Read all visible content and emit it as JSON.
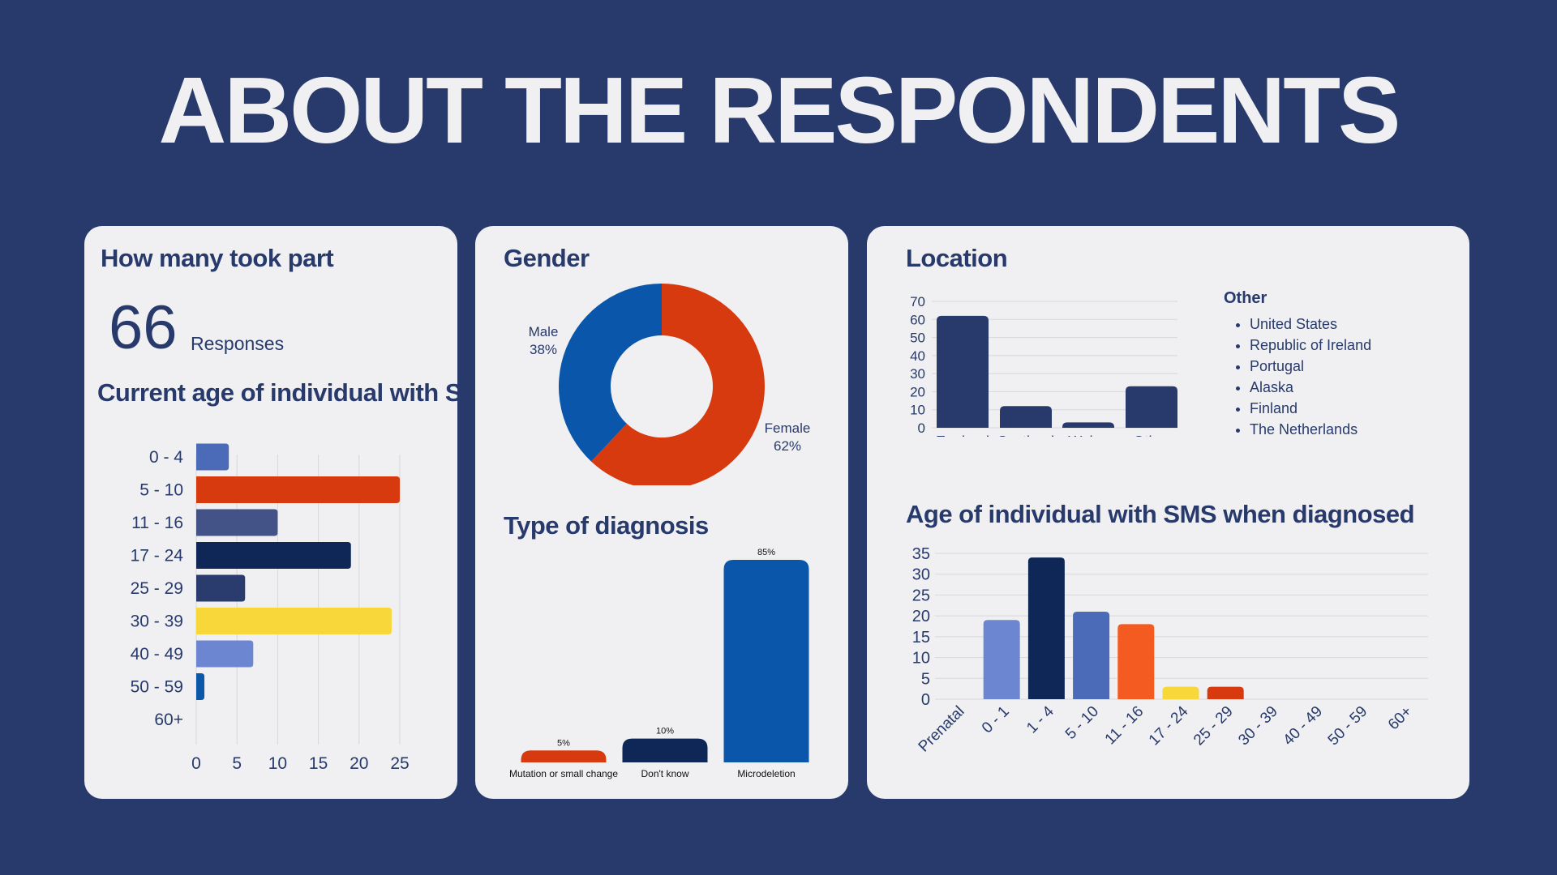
{
  "page": {
    "title": "ABOUT THE RESPONDENTS"
  },
  "participants": {
    "heading": "How many took part",
    "count": "66",
    "count_label": "Responses",
    "age_heading": "Current age of individual with SMS"
  },
  "gender": {
    "heading": "Gender"
  },
  "diagnosis": {
    "heading": "Type of diagnosis"
  },
  "location": {
    "heading": "Location",
    "other_title": "Other",
    "other_items": [
      "United States",
      "Republic of Ireland",
      "Portugal",
      "Alaska",
      "Finland",
      "The Netherlands"
    ]
  },
  "age_diagnosed": {
    "heading": "Age of individual with SMS when diagnosed"
  },
  "chart_data": [
    {
      "id": "current_age",
      "type": "bar",
      "orientation": "horizontal",
      "categories": [
        "0 - 4",
        "5 - 10",
        "11 - 16",
        "17 - 24",
        "25 - 29",
        "30 - 39",
        "40 - 49",
        "50 - 59",
        "60+"
      ],
      "values": [
        4,
        25,
        10,
        19,
        6,
        24,
        7,
        1,
        0
      ],
      "colors": [
        "#4b6bb8",
        "#d73a0e",
        "#435287",
        "#0e2756",
        "#2a3b6e",
        "#f8d73a",
        "#6c86d1",
        "#0b57a8",
        "#6c86d1"
      ],
      "xlim": [
        0,
        25
      ],
      "xticks": [
        0,
        5,
        10,
        15,
        20,
        25
      ],
      "grid": true
    },
    {
      "id": "gender",
      "type": "pie",
      "donut": true,
      "labels": [
        "Female",
        "Male"
      ],
      "values": [
        62,
        38
      ],
      "value_labels": [
        "62%",
        "38%"
      ],
      "colors": [
        "#d73a0e",
        "#0a56aa"
      ]
    },
    {
      "id": "diagnosis",
      "type": "bar",
      "categories": [
        "Mutation or small change",
        "Don't know",
        "Microdeletion"
      ],
      "values": [
        5,
        10,
        85
      ],
      "data_labels": [
        "5%",
        "10%",
        "85%"
      ],
      "colors": [
        "#d73a0e",
        "#0e2756",
        "#0a56aa"
      ],
      "ylim": [
        0,
        85
      ]
    },
    {
      "id": "location",
      "type": "bar",
      "categories": [
        "England",
        "Scotland",
        "Wales",
        "Other"
      ],
      "values": [
        62,
        12,
        3,
        23
      ],
      "colors": [
        "#273a6b",
        "#273a6b",
        "#273a6b",
        "#273a6b"
      ],
      "ylim": [
        0,
        70
      ],
      "yticks": [
        0,
        10,
        20,
        30,
        40,
        50,
        60,
        70
      ],
      "grid": true
    },
    {
      "id": "age_diagnosed",
      "type": "bar",
      "categories": [
        "Prenatal",
        "0 - 1",
        "1 - 4",
        "5 - 10",
        "11 - 16",
        "17 - 24",
        "25 - 29",
        "30 - 39",
        "40 - 49",
        "50 - 59",
        "60+"
      ],
      "values": [
        0,
        19,
        34,
        21,
        18,
        3,
        3,
        0,
        0,
        0,
        0
      ],
      "colors": [
        "#6c86d1",
        "#6c86d1",
        "#0e2756",
        "#4b6bb8",
        "#f45b21",
        "#f8d73a",
        "#d73a0e",
        "#6c86d1",
        "#6c86d1",
        "#6c86d1",
        "#6c86d1"
      ],
      "ylim": [
        0,
        35
      ],
      "yticks": [
        0,
        5,
        10,
        15,
        20,
        25,
        30,
        35
      ],
      "grid": true
    }
  ]
}
